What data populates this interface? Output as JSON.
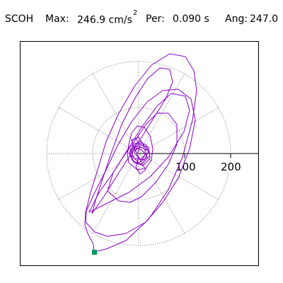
{
  "header": {
    "station": "SCOH",
    "max_label": "Max:",
    "max_value": "246.9 cm/s",
    "max_exp": "2",
    "per_label": "Per:",
    "per_value": "0.090 s",
    "ang_label": "Ang:",
    "ang_value": "247.0"
  },
  "plot": {
    "tick_labels": [
      "100",
      "200"
    ],
    "colors": {
      "trace": "#8a00c8",
      "grid": "#777777",
      "marker": "#009966",
      "axis": "#000000"
    }
  }
}
